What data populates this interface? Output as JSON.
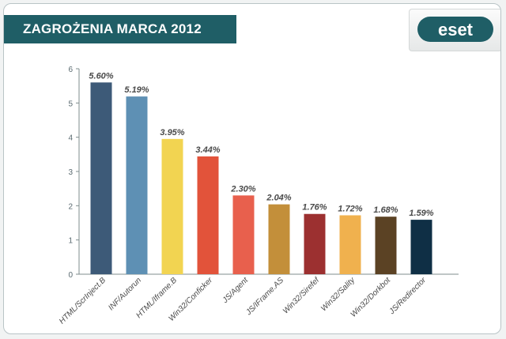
{
  "title": "ZAGROŻENIA MARCA 2012",
  "logo_text": "eset",
  "chart_data": {
    "type": "bar",
    "categories": [
      "HTML/ScrInject.B",
      "INF/Autorun",
      "HTML/Iframe.B",
      "Win32/Conficker",
      "JS/Agent",
      "JS/IFrame.AS",
      "Win32/Sirefef",
      "Win32/Sality",
      "Win32/Dorkbot",
      "JS/Redirector"
    ],
    "values": [
      5.6,
      5.19,
      3.95,
      3.44,
      2.3,
      2.04,
      1.76,
      1.72,
      1.68,
      1.59
    ],
    "value_labels": [
      "5.60%",
      "5.19%",
      "3.95%",
      "3.44%",
      "2.30%",
      "2.04%",
      "1.76%",
      "1.72%",
      "1.68%",
      "1.59%"
    ],
    "colors": [
      "#3d5a78",
      "#5e90b4",
      "#f2d451",
      "#e2533a",
      "#e8604d",
      "#c38f3a",
      "#9c3030",
      "#f0b14e",
      "#5b4224",
      "#0f2f45"
    ],
    "y_ticks": [
      0,
      1,
      2,
      3,
      4,
      5,
      6
    ],
    "ylim": [
      0,
      6
    ],
    "title": "",
    "xlabel": "",
    "ylabel": "",
    "grid": false,
    "legend": "none"
  }
}
